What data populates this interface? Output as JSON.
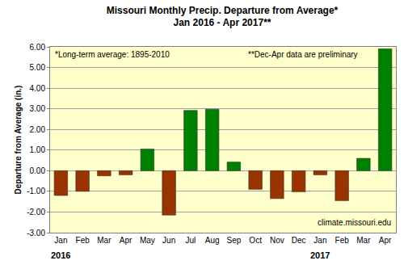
{
  "chart_data": {
    "type": "bar",
    "title": "Missouri Monthly Precip. Departure from Average*",
    "subtitle": "Jan 2016 - Apr 2017**",
    "y_label": "Departure from Average (in.)",
    "categories": [
      "Jan",
      "Feb",
      "Mar",
      "Apr",
      "May",
      "Jun",
      "Jul",
      "Aug",
      "Sep",
      "Oct",
      "Nov",
      "Dec",
      "Jan",
      "Feb",
      "Mar",
      "Apr"
    ],
    "values": [
      -1.2,
      -1.0,
      -0.25,
      -0.2,
      1.05,
      -2.15,
      2.92,
      2.98,
      0.42,
      -0.9,
      -1.35,
      -1.02,
      -0.2,
      -1.45,
      0.6,
      5.9
    ],
    "colors": [
      "#993300",
      "#993300",
      "#993300",
      "#993300",
      "#008000",
      "#993300",
      "#008000",
      "#008000",
      "#008000",
      "#993300",
      "#993300",
      "#993300",
      "#993300",
      "#993300",
      "#008000",
      "#008000"
    ],
    "year_labels": [
      {
        "text": "2016",
        "x": 0
      },
      {
        "text": "2017",
        "x": 12
      }
    ],
    "notes": [
      "*Long-term average: 1895-2010",
      "**Dec-Apr data are preliminary",
      "climate.missouri.edu"
    ],
    "ylim": [
      -3,
      6
    ],
    "yticks": [
      {
        "value": -3,
        "label": "-3.00"
      },
      {
        "value": -2,
        "label": "-2.00"
      },
      {
        "value": -1,
        "label": "-1.00"
      },
      {
        "value": 0,
        "label": "0.00"
      },
      {
        "value": 1,
        "label": "1.00"
      },
      {
        "value": 2,
        "label": "2.00"
      },
      {
        "value": 3,
        "label": "3.00"
      },
      {
        "value": 4,
        "label": "4.00"
      },
      {
        "value": 5,
        "label": "5.00"
      },
      {
        "value": 6,
        "label": "6.00"
      }
    ],
    "grid": true
  }
}
